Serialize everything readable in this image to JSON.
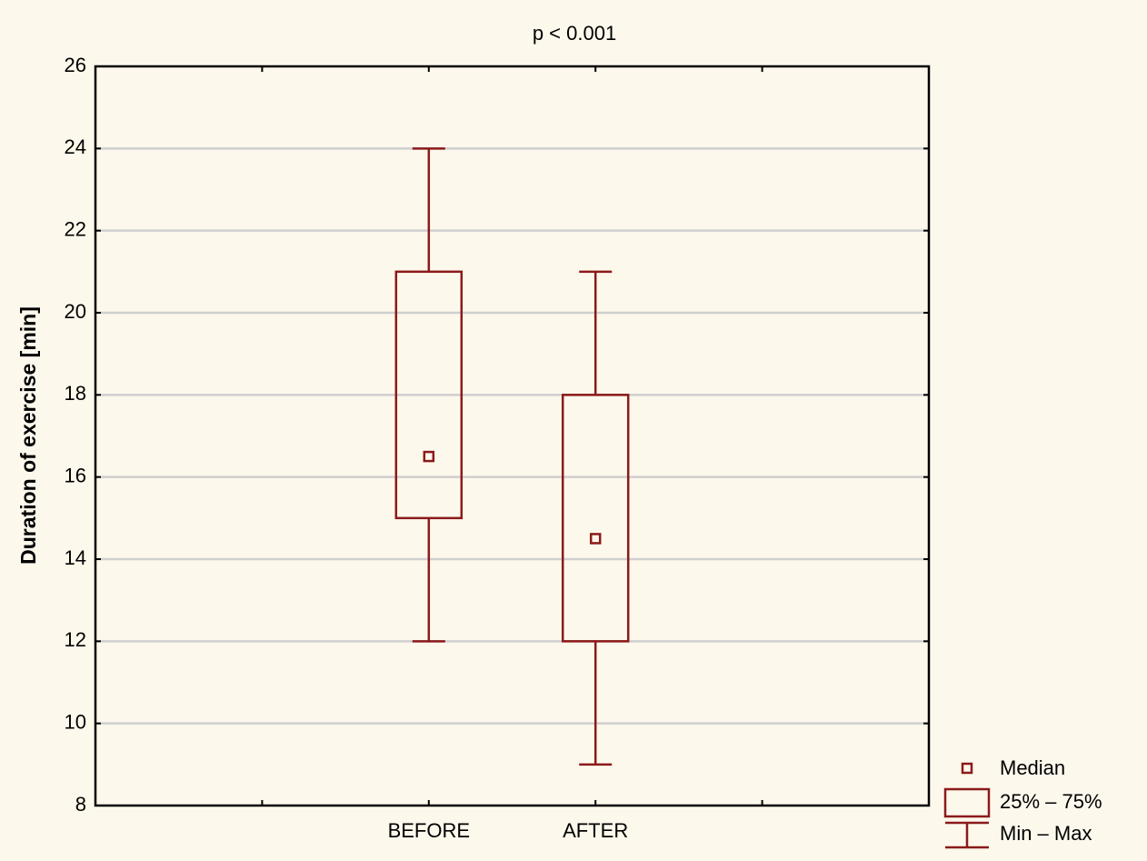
{
  "chart_data": {
    "type": "box",
    "title": "p < 0.001",
    "y_label": "Duration of exercise [min]",
    "categories": [
      null,
      "BEFORE",
      "AFTER",
      null
    ],
    "series": [
      {
        "name": "Median",
        "values": [
          null,
          16.5,
          14.5,
          null
        ]
      },
      {
        "name": "25% – 75%",
        "low": [
          null,
          15,
          12,
          null
        ],
        "high": [
          null,
          21,
          18,
          null
        ]
      },
      {
        "name": "Min – Max",
        "low": [
          null,
          12,
          9,
          null
        ],
        "high": [
          null,
          24,
          21,
          null
        ]
      }
    ],
    "color": "#8b1a1a",
    "ylim": [
      8,
      26
    ],
    "yticks": [
      8,
      10,
      12,
      14,
      16,
      18,
      20,
      22,
      24,
      26
    ],
    "grid": true
  }
}
